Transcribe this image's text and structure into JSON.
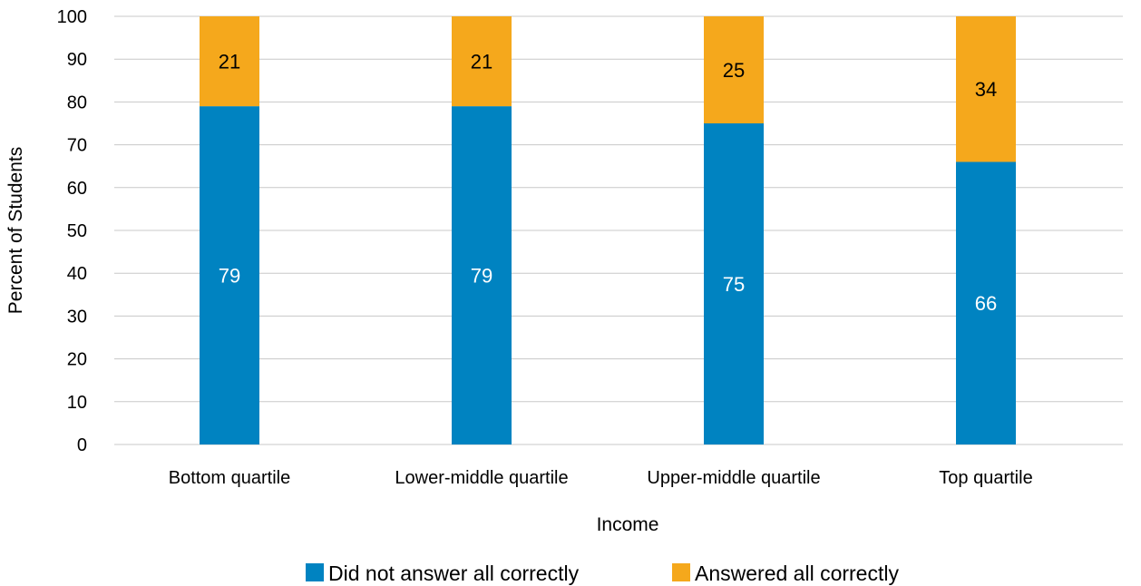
{
  "chart_data": {
    "type": "bar",
    "stacked": true,
    "categories": [
      "Bottom quartile",
      "Lower-middle quartile",
      "Upper-middle quartile",
      "Top quartile"
    ],
    "series": [
      {
        "name": "Did not answer all correctly",
        "values": [
          79,
          79,
          75,
          66
        ],
        "color": "#0083C1"
      },
      {
        "name": "Answered all correctly",
        "values": [
          21,
          21,
          25,
          34
        ],
        "color": "#F5A81C"
      }
    ],
    "xlabel": "Income",
    "ylabel": "Percent of Students",
    "ylim": [
      0,
      100
    ],
    "yticks": [
      0,
      10,
      20,
      30,
      40,
      50,
      60,
      70,
      80,
      90,
      100
    ],
    "grid": true,
    "legend_position": "bottom",
    "label_colors": [
      "#ffffff",
      "#000000"
    ],
    "gridline_color": "#c8c8c8"
  }
}
